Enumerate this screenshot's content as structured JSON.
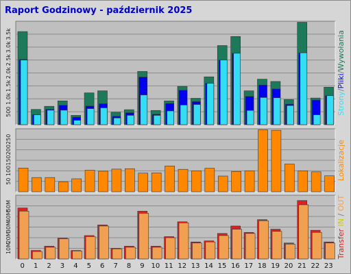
{
  "chart_data": [
    {
      "type": "bar",
      "title": "Raport Godzinowy -  październik 2025",
      "categories": [
        "0",
        "1",
        "2",
        "3",
        "4",
        "5",
        "6",
        "7",
        "8",
        "9",
        "10",
        "11",
        "12",
        "13",
        "14",
        "15",
        "16",
        "17",
        "18",
        "19",
        "20",
        "21",
        "22",
        "23"
      ],
      "ylabel": [
        "Strony",
        "/",
        "Pliki",
        "/",
        "Wywołania"
      ],
      "yticks": [
        "500",
        "1.0k",
        "1.5k",
        "2.0k",
        "2.5k",
        "3.0k",
        "3.5k"
      ],
      "ylim": [
        0,
        4000
      ],
      "series": [
        {
          "name": "Wywołania",
          "color": "#1c7a5a",
          "values": [
            3600,
            590,
            710,
            920,
            360,
            1230,
            1310,
            480,
            580,
            2060,
            550,
            920,
            1480,
            1020,
            1850,
            3060,
            3410,
            1310,
            1760,
            1670,
            970,
            3960,
            1030,
            1450
          ]
        },
        {
          "name": "Pliki",
          "color": "#0000ee",
          "values": [
            2520,
            390,
            590,
            750,
            290,
            720,
            810,
            320,
            460,
            1840,
            400,
            820,
            1330,
            890,
            1600,
            2500,
            2760,
            1090,
            1530,
            1380,
            790,
            2780,
            950,
            1120
          ]
        },
        {
          "name": "Strony",
          "color": "#33ddf4",
          "values": [
            2500,
            380,
            560,
            560,
            170,
            620,
            650,
            260,
            360,
            1150,
            360,
            530,
            760,
            780,
            1600,
            2500,
            2760,
            550,
            1050,
            1040,
            740,
            2780,
            380,
            1120
          ]
        }
      ]
    },
    {
      "type": "bar",
      "categories": [
        "0",
        "1",
        "2",
        "3",
        "4",
        "5",
        "6",
        "7",
        "8",
        "9",
        "10",
        "11",
        "12",
        "13",
        "14",
        "15",
        "16",
        "17",
        "18",
        "19",
        "20",
        "21",
        "22",
        "23"
      ],
      "ylabel": "Lokalizacje",
      "yticks": [
        "50",
        "100",
        "150",
        "200",
        "250"
      ],
      "ylim": [
        0,
        300
      ],
      "series": [
        {
          "name": "Lokalizacje",
          "color": "#ff8800",
          "values": [
            113,
            68,
            68,
            47,
            62,
            103,
            98,
            108,
            110,
            89,
            90,
            123,
            107,
            100,
            112,
            75,
            97,
            100,
            295,
            293,
            132,
            100,
            95,
            76
          ]
        }
      ]
    },
    {
      "type": "bar",
      "categories": [
        "0",
        "1",
        "2",
        "3",
        "4",
        "5",
        "6",
        "7",
        "8",
        "9",
        "10",
        "11",
        "12",
        "13",
        "14",
        "15",
        "16",
        "17",
        "18",
        "19",
        "20",
        "21",
        "22",
        "23"
      ],
      "ylabel": [
        "Transfer",
        " ",
        "IN",
        " ",
        "/",
        " ",
        "OUT"
      ],
      "yticks": [
        "10M",
        "20M",
        "30M",
        "40M",
        "50M"
      ],
      "ylim": [
        0,
        60000000
      ],
      "series": [
        {
          "name": "IN",
          "color": "#e02020",
          "values": [
            48000000,
            8000000,
            12000000,
            19500000,
            8000000,
            22000000,
            32000000,
            10000000,
            12000000,
            45000000,
            12000000,
            21000000,
            35000000,
            16000000,
            17000000,
            24000000,
            31000000,
            25000000,
            37000000,
            28000000,
            15000000,
            55000000,
            27000000,
            16000000
          ]
        },
        {
          "name": "OUT",
          "color": "#f0a050",
          "values": [
            45000000,
            7000000,
            11000000,
            19000000,
            7500000,
            21000000,
            31000000,
            9500000,
            11000000,
            43000000,
            11000000,
            20000000,
            34000000,
            15000000,
            16000000,
            22000000,
            28000000,
            24000000,
            36000000,
            26000000,
            14000000,
            51000000,
            25000000,
            15000000
          ]
        }
      ]
    }
  ]
}
